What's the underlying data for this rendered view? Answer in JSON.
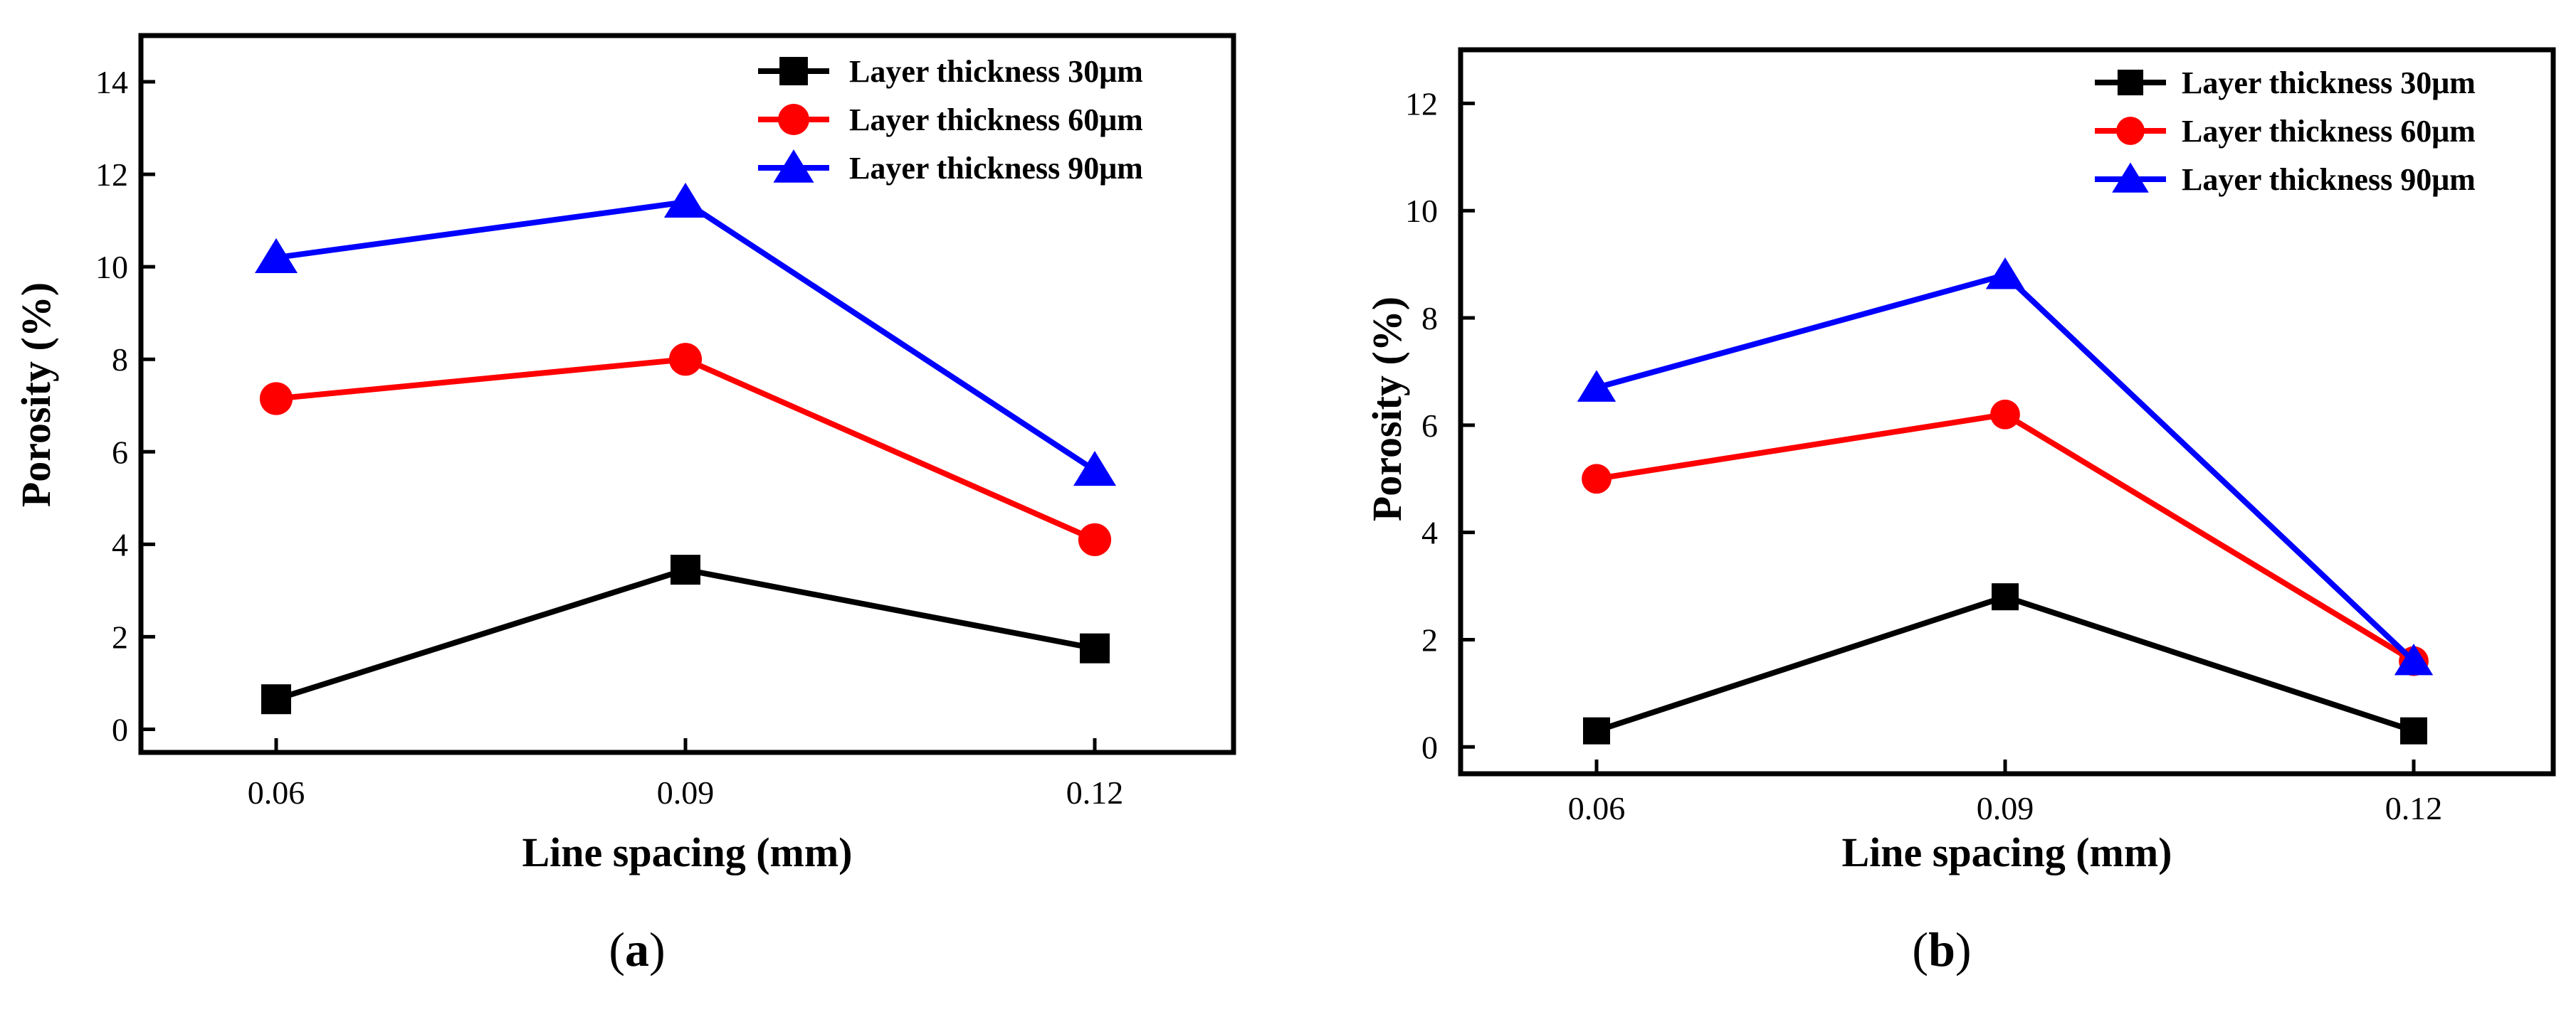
{
  "figure": {
    "captions": [
      "a",
      "b"
    ]
  },
  "chart_data": [
    {
      "type": "line",
      "panel": "a",
      "xlabel": "Line spacing (mm)",
      "ylabel": "Porosity (%)",
      "categories": [
        "0.06",
        "0.09",
        "0.12"
      ],
      "ylim": [
        -0.5,
        15
      ],
      "yticks": [
        0,
        2,
        4,
        6,
        8,
        10,
        12,
        14
      ],
      "legend_position": "top-right",
      "series": [
        {
          "name": "Layer thickness 30μm",
          "color": "#000000",
          "marker": "square",
          "values": [
            0.65,
            3.45,
            1.75
          ]
        },
        {
          "name": "Layer thickness 60μm",
          "color": "#ff0000",
          "marker": "circle",
          "values": [
            7.15,
            8.0,
            4.1
          ]
        },
        {
          "name": "Layer thickness 90μm",
          "color": "#0000ff",
          "marker": "triangle",
          "values": [
            10.2,
            11.4,
            5.6
          ]
        }
      ]
    },
    {
      "type": "line",
      "panel": "b",
      "xlabel": "Line spacing (mm)",
      "ylabel": "Porosity (%)",
      "categories": [
        "0.06",
        "0.09",
        "0.12"
      ],
      "ylim": [
        -0.5,
        13
      ],
      "yticks": [
        0,
        2,
        4,
        6,
        8,
        10,
        12
      ],
      "legend_position": "top-right",
      "series": [
        {
          "name": "Layer thickness 30μm",
          "color": "#000000",
          "marker": "square",
          "values": [
            0.3,
            2.8,
            0.3
          ]
        },
        {
          "name": "Layer thickness 60μm",
          "color": "#ff0000",
          "marker": "circle",
          "values": [
            5.0,
            6.2,
            1.6
          ]
        },
        {
          "name": "Layer thickness 90μm",
          "color": "#0000ff",
          "marker": "triangle",
          "values": [
            6.7,
            8.8,
            1.6
          ]
        }
      ]
    }
  ]
}
